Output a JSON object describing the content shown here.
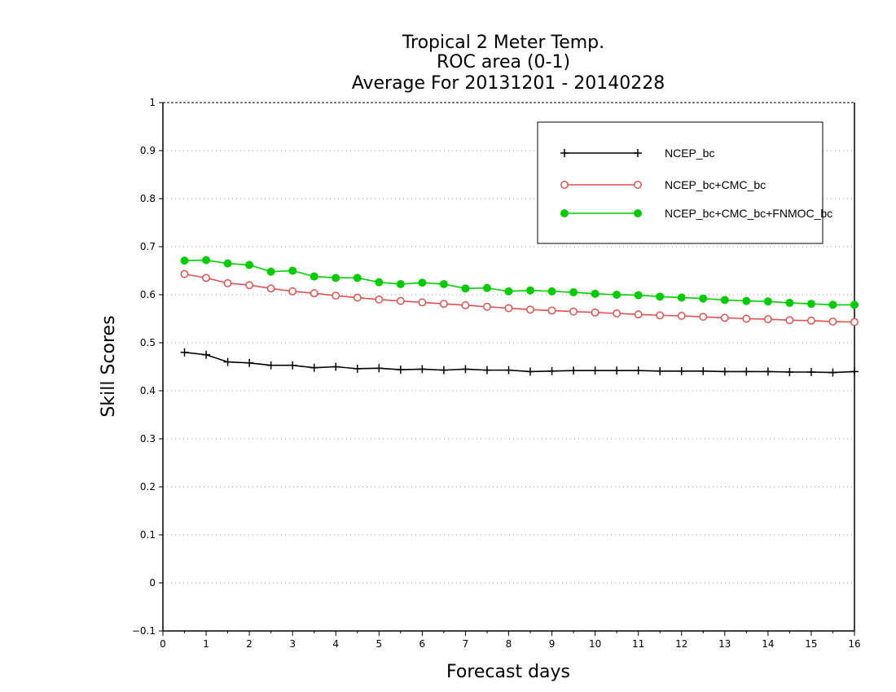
{
  "chart_data": {
    "type": "line",
    "title": [
      "Tropical 2 Meter Temp.",
      "ROC area (0-1)",
      "Average For 20131201 - 20140228"
    ],
    "xlabel": "Forecast days",
    "ylabel": "Skill Scores",
    "xlim": [
      0,
      16
    ],
    "ylim": [
      -0.1,
      1
    ],
    "xticks": [
      "0",
      "1",
      "2",
      "3",
      "4",
      "5",
      "6",
      "7",
      "8",
      "9",
      "10",
      "11",
      "12",
      "13",
      "14",
      "15",
      "16"
    ],
    "yticks": [
      "−0.1",
      "0",
      "0.1",
      "0.2",
      "0.3",
      "0.4",
      "0.5",
      "0.6",
      "0.7",
      "0.8",
      "0.9",
      "1"
    ],
    "grid": "horizontal dotted",
    "legend_position": "top-right",
    "x": [
      0.5,
      1,
      1.5,
      2,
      2.5,
      3,
      3.5,
      4,
      4.5,
      5,
      5.5,
      6,
      6.5,
      7,
      7.5,
      8,
      8.5,
      9,
      9.5,
      10,
      10.5,
      11,
      11.5,
      12,
      12.5,
      13,
      13.5,
      14,
      14.5,
      15,
      15.5,
      16
    ],
    "series": [
      {
        "name": "NCEP_bc",
        "color": "#000000",
        "marker": "plus",
        "values": [
          0.48,
          0.475,
          0.46,
          0.458,
          0.453,
          0.453,
          0.448,
          0.45,
          0.446,
          0.447,
          0.444,
          0.445,
          0.443,
          0.445,
          0.443,
          0.443,
          0.44,
          0.441,
          0.442,
          0.442,
          0.442,
          0.442,
          0.441,
          0.441,
          0.441,
          0.44,
          0.44,
          0.44,
          0.439,
          0.439,
          0.438,
          0.44
        ]
      },
      {
        "name": "NCEP_bc+CMC_bc",
        "color": "#e05050",
        "marker": "open-circle",
        "values": [
          0.643,
          0.635,
          0.624,
          0.62,
          0.613,
          0.607,
          0.603,
          0.598,
          0.594,
          0.59,
          0.587,
          0.584,
          0.581,
          0.578,
          0.575,
          0.572,
          0.569,
          0.567,
          0.565,
          0.563,
          0.561,
          0.559,
          0.557,
          0.556,
          0.554,
          0.552,
          0.55,
          0.549,
          0.547,
          0.546,
          0.544,
          0.543
        ]
      },
      {
        "name": "NCEP_bc+CMC_bc+FNMOC_bc",
        "color": "#00cc00",
        "marker": "filled-circle",
        "values": [
          0.671,
          0.672,
          0.665,
          0.662,
          0.648,
          0.65,
          0.638,
          0.635,
          0.635,
          0.626,
          0.622,
          0.625,
          0.622,
          0.613,
          0.614,
          0.607,
          0.609,
          0.607,
          0.605,
          0.602,
          0.6,
          0.599,
          0.596,
          0.594,
          0.592,
          0.589,
          0.587,
          0.586,
          0.583,
          0.581,
          0.579,
          0.579
        ]
      }
    ]
  }
}
